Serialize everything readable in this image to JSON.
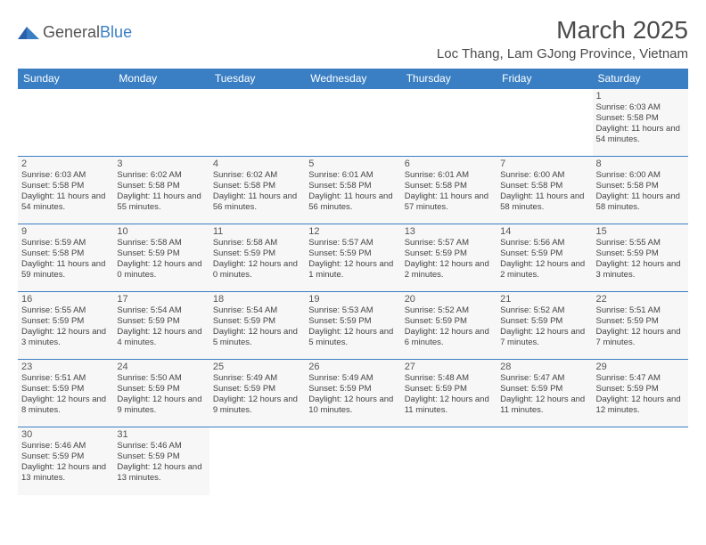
{
  "logo": {
    "word1": "General",
    "word2": "Blue"
  },
  "title": "March 2025",
  "location": "Loc Thang, Lam GJong Province, Vietnam",
  "dayHeaders": [
    "Sunday",
    "Monday",
    "Tuesday",
    "Wednesday",
    "Thursday",
    "Friday",
    "Saturday"
  ],
  "colors": {
    "headerBg": "#3a7fc4",
    "headerText": "#ffffff",
    "cellBg": "#f7f7f7",
    "border": "#3a7fc4",
    "pageBg": "#ffffff",
    "text": "#444444"
  },
  "weeks": [
    [
      null,
      null,
      null,
      null,
      null,
      null,
      {
        "n": "1",
        "sr": "Sunrise: 6:03 AM",
        "ss": "Sunset: 5:58 PM",
        "dl": "Daylight: 11 hours and 54 minutes."
      }
    ],
    [
      {
        "n": "2",
        "sr": "Sunrise: 6:03 AM",
        "ss": "Sunset: 5:58 PM",
        "dl": "Daylight: 11 hours and 54 minutes."
      },
      {
        "n": "3",
        "sr": "Sunrise: 6:02 AM",
        "ss": "Sunset: 5:58 PM",
        "dl": "Daylight: 11 hours and 55 minutes."
      },
      {
        "n": "4",
        "sr": "Sunrise: 6:02 AM",
        "ss": "Sunset: 5:58 PM",
        "dl": "Daylight: 11 hours and 56 minutes."
      },
      {
        "n": "5",
        "sr": "Sunrise: 6:01 AM",
        "ss": "Sunset: 5:58 PM",
        "dl": "Daylight: 11 hours and 56 minutes."
      },
      {
        "n": "6",
        "sr": "Sunrise: 6:01 AM",
        "ss": "Sunset: 5:58 PM",
        "dl": "Daylight: 11 hours and 57 minutes."
      },
      {
        "n": "7",
        "sr": "Sunrise: 6:00 AM",
        "ss": "Sunset: 5:58 PM",
        "dl": "Daylight: 11 hours and 58 minutes."
      },
      {
        "n": "8",
        "sr": "Sunrise: 6:00 AM",
        "ss": "Sunset: 5:58 PM",
        "dl": "Daylight: 11 hours and 58 minutes."
      }
    ],
    [
      {
        "n": "9",
        "sr": "Sunrise: 5:59 AM",
        "ss": "Sunset: 5:58 PM",
        "dl": "Daylight: 11 hours and 59 minutes."
      },
      {
        "n": "10",
        "sr": "Sunrise: 5:58 AM",
        "ss": "Sunset: 5:59 PM",
        "dl": "Daylight: 12 hours and 0 minutes."
      },
      {
        "n": "11",
        "sr": "Sunrise: 5:58 AM",
        "ss": "Sunset: 5:59 PM",
        "dl": "Daylight: 12 hours and 0 minutes."
      },
      {
        "n": "12",
        "sr": "Sunrise: 5:57 AM",
        "ss": "Sunset: 5:59 PM",
        "dl": "Daylight: 12 hours and 1 minute."
      },
      {
        "n": "13",
        "sr": "Sunrise: 5:57 AM",
        "ss": "Sunset: 5:59 PM",
        "dl": "Daylight: 12 hours and 2 minutes."
      },
      {
        "n": "14",
        "sr": "Sunrise: 5:56 AM",
        "ss": "Sunset: 5:59 PM",
        "dl": "Daylight: 12 hours and 2 minutes."
      },
      {
        "n": "15",
        "sr": "Sunrise: 5:55 AM",
        "ss": "Sunset: 5:59 PM",
        "dl": "Daylight: 12 hours and 3 minutes."
      }
    ],
    [
      {
        "n": "16",
        "sr": "Sunrise: 5:55 AM",
        "ss": "Sunset: 5:59 PM",
        "dl": "Daylight: 12 hours and 3 minutes."
      },
      {
        "n": "17",
        "sr": "Sunrise: 5:54 AM",
        "ss": "Sunset: 5:59 PM",
        "dl": "Daylight: 12 hours and 4 minutes."
      },
      {
        "n": "18",
        "sr": "Sunrise: 5:54 AM",
        "ss": "Sunset: 5:59 PM",
        "dl": "Daylight: 12 hours and 5 minutes."
      },
      {
        "n": "19",
        "sr": "Sunrise: 5:53 AM",
        "ss": "Sunset: 5:59 PM",
        "dl": "Daylight: 12 hours and 5 minutes."
      },
      {
        "n": "20",
        "sr": "Sunrise: 5:52 AM",
        "ss": "Sunset: 5:59 PM",
        "dl": "Daylight: 12 hours and 6 minutes."
      },
      {
        "n": "21",
        "sr": "Sunrise: 5:52 AM",
        "ss": "Sunset: 5:59 PM",
        "dl": "Daylight: 12 hours and 7 minutes."
      },
      {
        "n": "22",
        "sr": "Sunrise: 5:51 AM",
        "ss": "Sunset: 5:59 PM",
        "dl": "Daylight: 12 hours and 7 minutes."
      }
    ],
    [
      {
        "n": "23",
        "sr": "Sunrise: 5:51 AM",
        "ss": "Sunset: 5:59 PM",
        "dl": "Daylight: 12 hours and 8 minutes."
      },
      {
        "n": "24",
        "sr": "Sunrise: 5:50 AM",
        "ss": "Sunset: 5:59 PM",
        "dl": "Daylight: 12 hours and 9 minutes."
      },
      {
        "n": "25",
        "sr": "Sunrise: 5:49 AM",
        "ss": "Sunset: 5:59 PM",
        "dl": "Daylight: 12 hours and 9 minutes."
      },
      {
        "n": "26",
        "sr": "Sunrise: 5:49 AM",
        "ss": "Sunset: 5:59 PM",
        "dl": "Daylight: 12 hours and 10 minutes."
      },
      {
        "n": "27",
        "sr": "Sunrise: 5:48 AM",
        "ss": "Sunset: 5:59 PM",
        "dl": "Daylight: 12 hours and 11 minutes."
      },
      {
        "n": "28",
        "sr": "Sunrise: 5:47 AM",
        "ss": "Sunset: 5:59 PM",
        "dl": "Daylight: 12 hours and 11 minutes."
      },
      {
        "n": "29",
        "sr": "Sunrise: 5:47 AM",
        "ss": "Sunset: 5:59 PM",
        "dl": "Daylight: 12 hours and 12 minutes."
      }
    ],
    [
      {
        "n": "30",
        "sr": "Sunrise: 5:46 AM",
        "ss": "Sunset: 5:59 PM",
        "dl": "Daylight: 12 hours and 13 minutes."
      },
      {
        "n": "31",
        "sr": "Sunrise: 5:46 AM",
        "ss": "Sunset: 5:59 PM",
        "dl": "Daylight: 12 hours and 13 minutes."
      },
      null,
      null,
      null,
      null,
      null
    ]
  ]
}
